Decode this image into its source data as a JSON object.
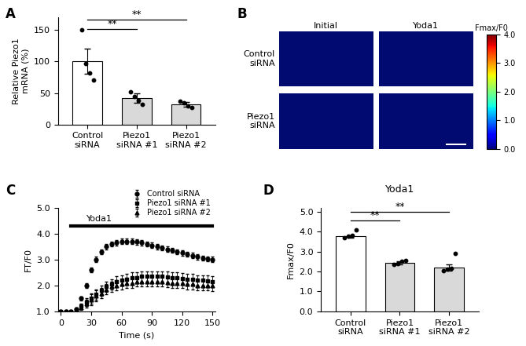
{
  "chart_data": [
    {
      "label": "A",
      "type": "bar",
      "categories": [
        "Control\nsiRNA",
        "Piezo1\nsiRNA #1",
        "Piezo1\nsiRNA #2"
      ],
      "values": [
        100,
        42,
        32
      ],
      "errors": [
        20,
        7,
        4
      ],
      "points": [
        [
          150,
          97,
          82,
          70
        ],
        [
          52,
          45,
          38,
          32
        ],
        [
          37,
          34,
          30,
          27
        ]
      ],
      "colors": [
        "#ffffff",
        "#d9d9d9",
        "#d9d9d9"
      ],
      "ylabel": "Relative Piezo1\nmRNA (%)",
      "ylim": [
        0,
        170
      ],
      "yticks": [
        0,
        50,
        100,
        150
      ],
      "annotations": [
        {
          "text": "**",
          "from": 0,
          "to": 1,
          "y": 151
        },
        {
          "text": "**",
          "from": 0,
          "to": 2,
          "y": 166
        }
      ]
    },
    {
      "label": "B",
      "type": "image",
      "columns": [
        "Initial",
        "Yoda1"
      ],
      "rows": [
        "Control\nsiRNA",
        "Piezo1\nsiRNA"
      ],
      "colorbar": {
        "title": "Fmax/F0",
        "range": [
          0,
          4
        ],
        "ticks": [
          {
            "value": 0,
            "label": "0.0"
          },
          {
            "value": 1,
            "label": "1.0"
          },
          {
            "value": 2,
            "label": "2.0"
          },
          {
            "value": 3,
            "label": "3.0"
          },
          {
            "value": 4,
            "label": "4.0"
          }
        ]
      }
    },
    {
      "label": "C",
      "type": "line",
      "x": [
        0,
        5,
        10,
        15,
        20,
        25,
        30,
        35,
        40,
        45,
        50,
        55,
        60,
        65,
        70,
        75,
        80,
        85,
        90,
        95,
        100,
        105,
        110,
        115,
        120,
        125,
        130,
        135,
        140,
        145,
        150
      ],
      "series": [
        {
          "name": "Control siRNA",
          "color": "#000000",
          "marker": "o",
          "line_style": "none",
          "values": [
            1.0,
            1.0,
            1.0,
            1.1,
            1.5,
            2.0,
            2.6,
            3.0,
            3.3,
            3.5,
            3.6,
            3.65,
            3.7,
            3.7,
            3.7,
            3.68,
            3.65,
            3.6,
            3.55,
            3.5,
            3.45,
            3.4,
            3.35,
            3.3,
            3.25,
            3.2,
            3.15,
            3.1,
            3.05,
            3.02,
            3.0
          ],
          "errors": [
            0.02,
            0.02,
            0.02,
            0.05,
            0.08,
            0.1,
            0.1,
            0.1,
            0.1,
            0.1,
            0.1,
            0.1,
            0.1,
            0.1,
            0.1,
            0.1,
            0.1,
            0.1,
            0.1,
            0.1,
            0.1,
            0.1,
            0.1,
            0.1,
            0.1,
            0.1,
            0.1,
            0.1,
            0.1,
            0.1,
            0.1
          ]
        },
        {
          "name": "Piezo1 siRNA #1",
          "color": "#000000",
          "marker": "s",
          "line_style": "none",
          "values": [
            1.0,
            1.0,
            1.0,
            1.05,
            1.2,
            1.35,
            1.5,
            1.65,
            1.8,
            1.95,
            2.05,
            2.15,
            2.2,
            2.25,
            2.3,
            2.3,
            2.35,
            2.35,
            2.35,
            2.35,
            2.35,
            2.33,
            2.3,
            2.3,
            2.28,
            2.25,
            2.25,
            2.2,
            2.2,
            2.18,
            2.15
          ],
          "errors": [
            0.02,
            0.02,
            0.02,
            0.05,
            0.1,
            0.15,
            0.2,
            0.2,
            0.2,
            0.2,
            0.2,
            0.2,
            0.2,
            0.2,
            0.2,
            0.2,
            0.2,
            0.2,
            0.2,
            0.2,
            0.2,
            0.2,
            0.2,
            0.2,
            0.2,
            0.2,
            0.2,
            0.2,
            0.2,
            0.2,
            0.2
          ]
        },
        {
          "name": "Piezo1 siRNA #2",
          "color": "#000000",
          "marker": "^",
          "line_style": "none",
          "values": [
            1.0,
            1.0,
            1.0,
            1.05,
            1.15,
            1.3,
            1.45,
            1.6,
            1.7,
            1.85,
            1.95,
            2.0,
            2.05,
            2.1,
            2.1,
            2.15,
            2.15,
            2.15,
            2.15,
            2.15,
            2.15,
            2.12,
            2.1,
            2.1,
            2.1,
            2.05,
            2.05,
            2.0,
            2.0,
            2.0,
            1.98
          ],
          "errors": [
            0.02,
            0.02,
            0.02,
            0.05,
            0.1,
            0.15,
            0.2,
            0.2,
            0.2,
            0.2,
            0.2,
            0.2,
            0.2,
            0.2,
            0.2,
            0.2,
            0.2,
            0.2,
            0.2,
            0.2,
            0.2,
            0.2,
            0.2,
            0.2,
            0.2,
            0.2,
            0.2,
            0.2,
            0.2,
            0.2,
            0.2
          ]
        }
      ],
      "xlabel": "Time (s)",
      "ylabel": "FT/F0",
      "xlim": [
        -3,
        153
      ],
      "xticks": [
        0,
        30,
        60,
        90,
        120,
        150
      ],
      "ylim": [
        1,
        5
      ],
      "yticks": [
        {
          "value": 1,
          "label": "1.0"
        },
        {
          "value": 2,
          "label": "2.0"
        },
        {
          "value": 3,
          "label": "3.0"
        },
        {
          "value": 4,
          "label": "4.0"
        },
        {
          "value": 5,
          "label": "5.0"
        }
      ],
      "legend": "upper right",
      "annotations": [
        {
          "text": "Yoda1",
          "from": 10,
          "to": 150,
          "y": 4.3
        }
      ]
    },
    {
      "label": "D",
      "type": "bar",
      "title": "Yoda1",
      "categories": [
        "Control\nsiRNA",
        "Piezo1\nsiRNA #1",
        "Piezo1\nsiRNA #2"
      ],
      "values": [
        3.75,
        2.45,
        2.2
      ],
      "errors": [
        0.07,
        0.08,
        0.15
      ],
      "points": [
        [
          3.7,
          3.75,
          3.8,
          4.1
        ],
        [
          2.35,
          2.4,
          2.5,
          2.55
        ],
        [
          2.05,
          2.1,
          2.15,
          2.9
        ]
      ],
      "colors": [
        "#ffffff",
        "#d9d9d9",
        "#d9d9d9"
      ],
      "ylabel": "Fmax/F0",
      "ylim": [
        0,
        5.2
      ],
      "yticks": [
        {
          "value": 0,
          "label": "0.0"
        },
        {
          "value": 1,
          "label": "1.0"
        },
        {
          "value": 2,
          "label": "2.0"
        },
        {
          "value": 3,
          "label": "3.0"
        },
        {
          "value": 4,
          "label": "4.0"
        },
        {
          "value": 5,
          "label": "5.0"
        }
      ],
      "annotations": [
        {
          "text": "**",
          "from": 0,
          "to": 1,
          "y": 4.55
        },
        {
          "text": "**",
          "from": 0,
          "to": 2,
          "y": 5.0
        }
      ]
    }
  ]
}
